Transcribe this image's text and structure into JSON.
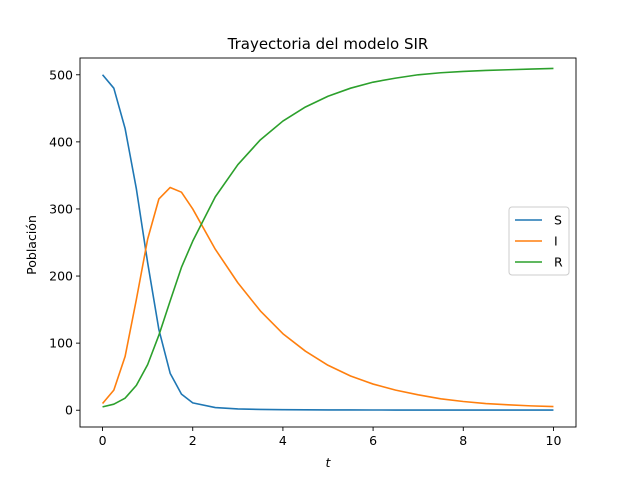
{
  "chart_data": {
    "type": "line",
    "title": "Trayectoria del modelo SIR",
    "xlabel": "t",
    "ylabel": "Población",
    "xlim": [
      -0.5,
      10.5
    ],
    "ylim": [
      -25,
      525
    ],
    "xticks": [
      0,
      2,
      4,
      6,
      8,
      10
    ],
    "yticks": [
      0,
      100,
      200,
      300,
      400,
      500
    ],
    "grid": false,
    "legend_position": "center-right",
    "x": [
      0,
      0.25,
      0.5,
      0.75,
      1,
      1.25,
      1.5,
      1.75,
      2,
      2.5,
      3,
      3.5,
      4,
      4.5,
      5,
      5.5,
      6,
      6.5,
      7,
      7.5,
      8,
      8.5,
      9,
      9.5,
      10
    ],
    "series": [
      {
        "name": "S",
        "color": "#1f77b4",
        "values": [
          500,
          480,
          420,
          330,
          220,
          120,
          55,
          24,
          11,
          4,
          2,
          1.2,
          0.8,
          0.6,
          0.5,
          0.4,
          0.35,
          0.3,
          0.3,
          0.3,
          0.3,
          0.3,
          0.3,
          0.3,
          0.3
        ]
      },
      {
        "name": "I",
        "color": "#ff7f0e",
        "values": [
          10,
          30,
          80,
          165,
          255,
          315,
          332,
          325,
          300,
          240,
          190,
          148,
          114,
          88,
          67,
          51,
          39,
          30,
          23,
          17,
          13,
          10,
          8,
          6.5,
          5.5
        ]
      },
      {
        "name": "R",
        "color": "#2ca02c",
        "values": [
          5,
          9,
          18,
          37,
          68,
          112,
          163,
          213,
          252,
          318,
          366,
          403,
          431,
          452,
          468,
          480,
          489,
          495,
          500,
          503,
          505,
          506.5,
          507.5,
          508.5,
          509.5
        ]
      }
    ]
  }
}
